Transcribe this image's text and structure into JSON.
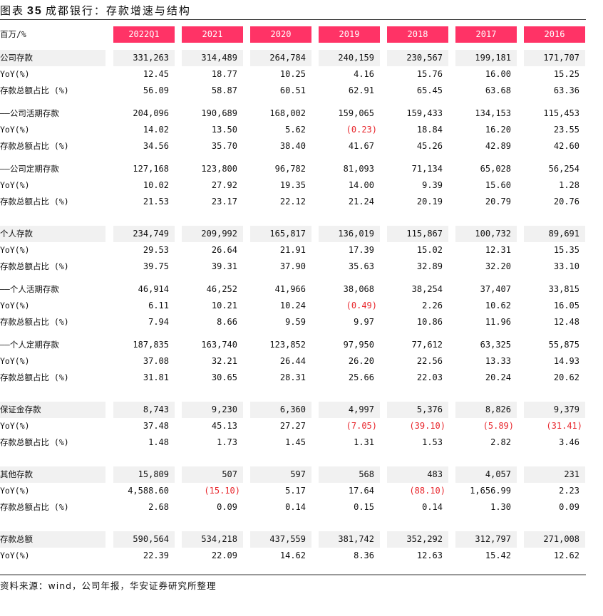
{
  "title": {
    "prefix": "图表",
    "number": "35",
    "text": "成都银行：存款增速与结构"
  },
  "header": {
    "unit": "百万/%",
    "columns": [
      "2022Q1",
      "2021",
      "2020",
      "2019",
      "2018",
      "2017",
      "2016"
    ]
  },
  "colors": {
    "header_bg": "#ff3366",
    "negative": "#e8262c",
    "band": "#f1f1f1"
  },
  "rows": [
    {
      "type": "main",
      "label": "公司存款",
      "values": [
        "331,263",
        "314,489",
        "264,784",
        "240,159",
        "230,567",
        "199,181",
        "171,707"
      ]
    },
    {
      "type": "yoy",
      "label": "YoY(%)",
      "values": [
        "12.45",
        "18.77",
        "10.25",
        "4.16",
        "15.76",
        "16.00",
        "15.25"
      ]
    },
    {
      "type": "share",
      "label": "存款总额占比 (%)",
      "values": [
        "56.09",
        "58.87",
        "60.51",
        "62.91",
        "65.45",
        "63.68",
        "63.36"
      ]
    },
    {
      "type": "sub",
      "label": "——公司活期存款",
      "values": [
        "204,096",
        "190,689",
        "168,002",
        "159,065",
        "159,433",
        "134,153",
        "115,453"
      ]
    },
    {
      "type": "yoy",
      "label": "YoY(%)",
      "values": [
        "14.02",
        "13.50",
        "5.62",
        "(0.23)",
        "18.84",
        "16.20",
        "23.55"
      ]
    },
    {
      "type": "share",
      "label": "存款总额占比 (%)",
      "values": [
        "34.56",
        "35.70",
        "38.40",
        "41.67",
        "45.26",
        "42.89",
        "42.60"
      ]
    },
    {
      "type": "sub",
      "label": "——公司定期存款",
      "values": [
        "127,168",
        "123,800",
        "96,782",
        "81,093",
        "71,134",
        "65,028",
        "56,254"
      ]
    },
    {
      "type": "yoy",
      "label": "YoY(%)",
      "values": [
        "10.02",
        "27.92",
        "19.35",
        "14.00",
        "9.39",
        "15.60",
        "1.28"
      ]
    },
    {
      "type": "share",
      "label": "存款总额占比 (%)",
      "values": [
        "21.53",
        "23.17",
        "22.12",
        "21.24",
        "20.19",
        "20.79",
        "20.76"
      ]
    },
    {
      "type": "main",
      "label": "个人存款",
      "values": [
        "234,749",
        "209,992",
        "165,817",
        "136,019",
        "115,867",
        "100,732",
        "89,691"
      ]
    },
    {
      "type": "yoy",
      "label": "YoY(%)",
      "values": [
        "29.53",
        "26.64",
        "21.91",
        "17.39",
        "15.02",
        "12.31",
        "15.35"
      ]
    },
    {
      "type": "share",
      "label": "存款总额占比 (%)",
      "values": [
        "39.75",
        "39.31",
        "37.90",
        "35.63",
        "32.89",
        "32.20",
        "33.10"
      ]
    },
    {
      "type": "sub",
      "label": "——个人活期存款",
      "values": [
        "46,914",
        "46,252",
        "41,966",
        "38,068",
        "38,254",
        "37,407",
        "33,815"
      ]
    },
    {
      "type": "yoy",
      "label": "YoY(%)",
      "values": [
        "6.11",
        "10.21",
        "10.24",
        "(0.49)",
        "2.26",
        "10.62",
        "16.05"
      ]
    },
    {
      "type": "share",
      "label": "存款总额占比 (%)",
      "values": [
        "7.94",
        "8.66",
        "9.59",
        "9.97",
        "10.86",
        "11.96",
        "12.48"
      ]
    },
    {
      "type": "sub",
      "label": "——个人定期存款",
      "values": [
        "187,835",
        "163,740",
        "123,852",
        "97,950",
        "77,612",
        "63,325",
        "55,875"
      ]
    },
    {
      "type": "yoy",
      "label": "YoY(%)",
      "values": [
        "37.08",
        "32.21",
        "26.44",
        "26.20",
        "22.56",
        "13.33",
        "14.93"
      ]
    },
    {
      "type": "share",
      "label": "存款总额占比 (%)",
      "values": [
        "31.81",
        "30.65",
        "28.31",
        "25.66",
        "22.03",
        "20.24",
        "20.62"
      ]
    },
    {
      "type": "main",
      "label": "保证金存款",
      "values": [
        "8,743",
        "9,230",
        "6,360",
        "4,997",
        "5,376",
        "8,826",
        "9,379"
      ]
    },
    {
      "type": "yoy",
      "label": "YoY(%)",
      "values": [
        "37.48",
        "45.13",
        "27.27",
        "(7.05)",
        "(39.10)",
        "(5.89)",
        "(31.41)"
      ]
    },
    {
      "type": "share",
      "label": "存款总额占比 (%)",
      "values": [
        "1.48",
        "1.73",
        "1.45",
        "1.31",
        "1.53",
        "2.82",
        "3.46"
      ]
    },
    {
      "type": "main",
      "label": "其他存款",
      "values": [
        "15,809",
        "507",
        "597",
        "568",
        "483",
        "4,057",
        "231"
      ]
    },
    {
      "type": "yoy",
      "label": "YoY(%)",
      "values": [
        "4,588.60",
        "(15.10)",
        "5.17",
        "17.64",
        "(88.10)",
        "1,656.99",
        "2.23"
      ]
    },
    {
      "type": "share",
      "label": "存款总额占比 (%)",
      "values": [
        "2.68",
        "0.09",
        "0.14",
        "0.15",
        "0.14",
        "1.30",
        "0.09"
      ]
    },
    {
      "type": "main",
      "label": "存款总额",
      "values": [
        "590,564",
        "534,218",
        "437,559",
        "381,742",
        "352,292",
        "312,797",
        "271,008"
      ]
    },
    {
      "type": "yoy",
      "label": "YoY(%)",
      "values": [
        "22.39",
        "22.09",
        "14.62",
        "8.36",
        "12.63",
        "15.42",
        "12.62"
      ]
    }
  ],
  "source": "资料来源：wind，公司年报，华安证券研究所整理"
}
